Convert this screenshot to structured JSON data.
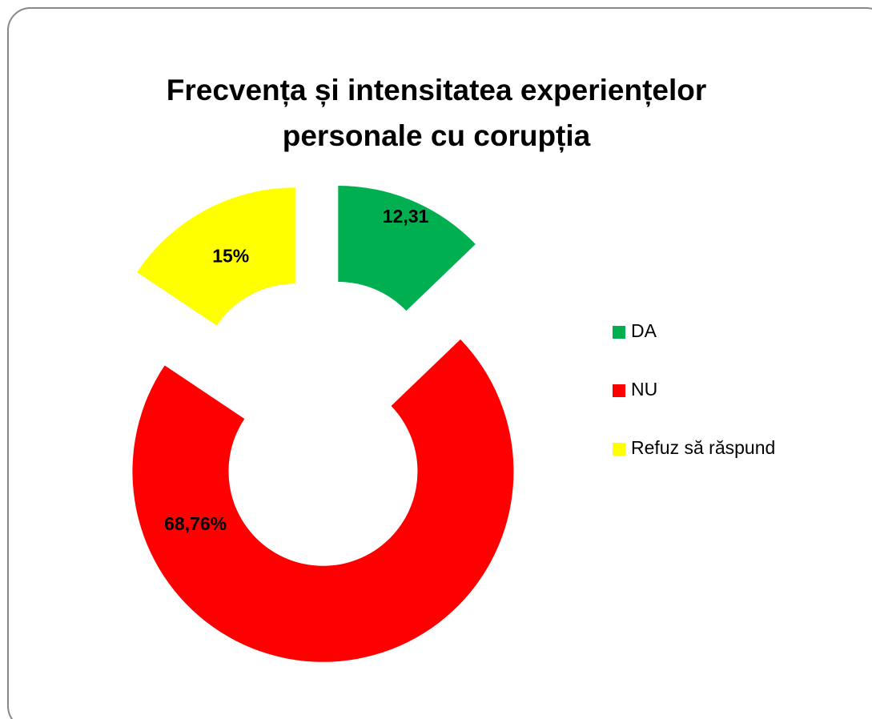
{
  "chart_data": {
    "type": "donut",
    "title": [
      "Frecvența și intensitatea experiențelor",
      "personale cu corupția"
    ],
    "categories": [
      "DA",
      "NU",
      "Refuz să răspund"
    ],
    "values": [
      12.31,
      68.76,
      15
    ],
    "value_labels": [
      "12,31",
      "68,76%",
      "15%"
    ],
    "colors": [
      "#00b050",
      "#ff0000",
      "#ffff00"
    ],
    "legend": "right"
  }
}
